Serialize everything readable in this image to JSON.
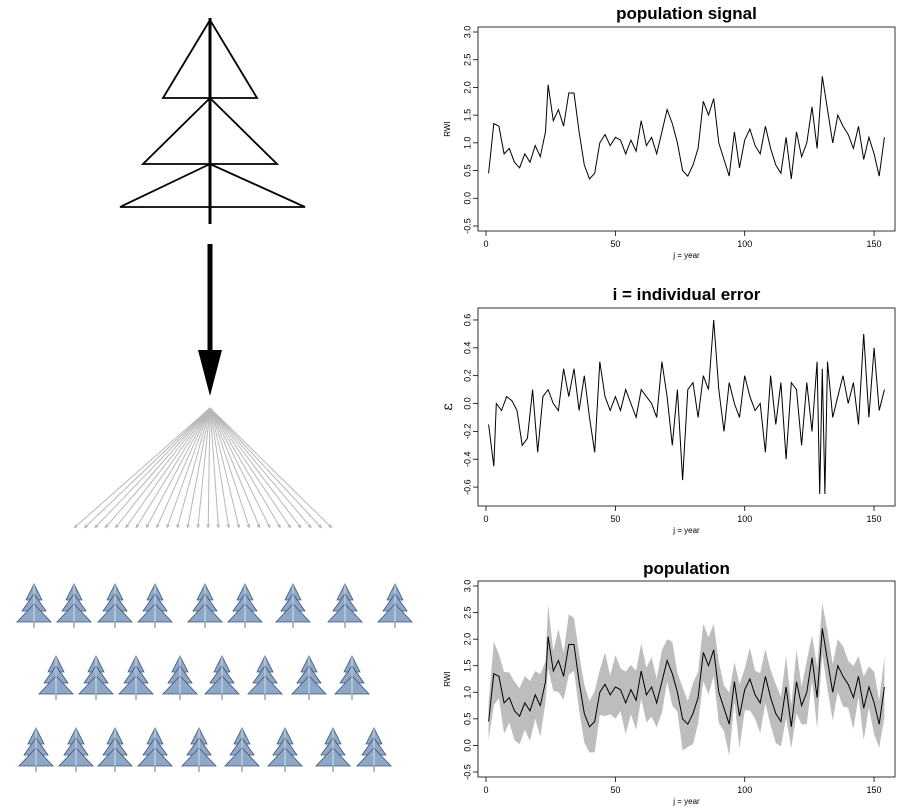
{
  "icons": {
    "main": "tree-outline-icon",
    "arrow": "down-arrow-icon",
    "fan": "fan-out-arrows-icon",
    "small": "small-tree-icon"
  },
  "colors": {
    "line": "#000000",
    "band": "#bdbdbd",
    "fan": "#b8b8b8",
    "tree_fill": "#8fa7c7",
    "tree_dark": "#3e5578"
  },
  "forest": {
    "rows": [
      9,
      8,
      9
    ]
  },
  "charts": [
    {
      "id": "signal",
      "title": "population signal",
      "ylabel": "RWI",
      "xlabel": "j = year",
      "ylim": [
        -0.5,
        3.0
      ],
      "xlim": [
        0,
        155
      ],
      "yticks": [
        "-0.5",
        "0.0",
        "0.5",
        "1.0",
        "1.5",
        "2.0",
        "2.5",
        "3.0"
      ],
      "xticks": [
        "0",
        "50",
        "100",
        "150"
      ]
    },
    {
      "id": "error",
      "title": "i = individual error",
      "ylabel": "ε",
      "xlabel": "j = year",
      "ylim": [
        -0.7,
        0.65
      ],
      "xlim": [
        0,
        155
      ],
      "yticks": [
        "-0.6",
        "-0.4",
        "-0.2",
        "0.0",
        "0.2",
        "0.4",
        "0.6"
      ],
      "xticks": [
        "0",
        "50",
        "100",
        "150"
      ]
    },
    {
      "id": "population",
      "title": "population",
      "ylabel": "RWI",
      "xlabel": "j = year",
      "ylim": [
        -0.5,
        3.0
      ],
      "xlim": [
        0,
        155
      ],
      "yticks": [
        "-0.5",
        "0.0",
        "0.5",
        "1.0",
        "1.5",
        "2.0",
        "2.5",
        "3.0"
      ],
      "xticks": [
        "0",
        "50",
        "100",
        "150"
      ]
    }
  ],
  "chart_data": [
    {
      "type": "line",
      "title": "population signal",
      "xlabel": "j = year",
      "ylabel": "RWI",
      "ylim": [
        -0.5,
        3.0
      ],
      "x": [
        1,
        3,
        5,
        7,
        9,
        11,
        13,
        15,
        17,
        19,
        21,
        23,
        24,
        26,
        28,
        30,
        32,
        34,
        36,
        38,
        40,
        42,
        44,
        46,
        48,
        50,
        52,
        54,
        56,
        58,
        60,
        62,
        64,
        66,
        68,
        70,
        72,
        74,
        76,
        78,
        80,
        82,
        84,
        86,
        88,
        90,
        92,
        94,
        96,
        98,
        100,
        102,
        104,
        106,
        108,
        110,
        112,
        114,
        116,
        118,
        120,
        122,
        124,
        126,
        128,
        130,
        132,
        134,
        136,
        138,
        140,
        142,
        144,
        146,
        148,
        150,
        152,
        154
      ],
      "y": [
        0.45,
        1.35,
        1.3,
        0.8,
        0.9,
        0.65,
        0.55,
        0.8,
        0.65,
        0.95,
        0.75,
        1.2,
        2.05,
        1.4,
        1.6,
        1.3,
        1.9,
        1.9,
        1.2,
        0.6,
        0.35,
        0.45,
        1.0,
        1.15,
        0.95,
        1.1,
        1.05,
        0.8,
        1.05,
        0.85,
        1.4,
        0.95,
        1.1,
        0.8,
        1.2,
        1.6,
        1.35,
        1.0,
        0.5,
        0.4,
        0.6,
        0.9,
        1.75,
        1.5,
        1.8,
        1.0,
        0.7,
        0.4,
        1.2,
        0.55,
        1.05,
        1.25,
        0.95,
        0.8,
        1.3,
        0.9,
        0.6,
        0.45,
        1.1,
        0.35,
        1.2,
        0.75,
        1.0,
        1.65,
        0.9,
        2.2,
        1.6,
        1.0,
        1.5,
        1.3,
        1.15,
        0.9,
        1.3,
        0.7,
        1.1,
        0.8,
        0.4,
        1.1
      ]
    },
    {
      "type": "line",
      "title": "i = individual error",
      "xlabel": "j = year",
      "ylabel": "ε",
      "ylim": [
        -0.7,
        0.65
      ],
      "x": [
        1,
        3,
        4,
        6,
        8,
        10,
        12,
        14,
        16,
        18,
        20,
        22,
        24,
        26,
        28,
        30,
        32,
        34,
        36,
        38,
        40,
        42,
        44,
        46,
        48,
        50,
        52,
        54,
        56,
        58,
        60,
        62,
        64,
        66,
        68,
        70,
        72,
        74,
        76,
        78,
        80,
        82,
        84,
        86,
        88,
        90,
        92,
        94,
        96,
        98,
        100,
        102,
        104,
        106,
        108,
        110,
        112,
        114,
        116,
        118,
        120,
        122,
        124,
        126,
        128,
        129,
        130,
        131,
        132,
        134,
        136,
        138,
        140,
        142,
        144,
        146,
        148,
        150,
        152,
        154
      ],
      "y": [
        -0.15,
        -0.45,
        0.0,
        -0.05,
        0.05,
        0.02,
        -0.05,
        -0.3,
        -0.25,
        0.1,
        -0.35,
        0.05,
        0.1,
        0.0,
        -0.05,
        0.25,
        0.05,
        0.25,
        -0.05,
        0.2,
        -0.1,
        -0.35,
        0.3,
        0.05,
        -0.05,
        0.05,
        -0.05,
        0.1,
        0.0,
        -0.1,
        0.1,
        0.05,
        0.0,
        -0.1,
        0.3,
        0.05,
        -0.3,
        0.1,
        -0.55,
        0.1,
        0.15,
        -0.1,
        0.2,
        0.1,
        0.6,
        0.1,
        -0.2,
        0.15,
        0.0,
        -0.1,
        0.2,
        0.05,
        -0.05,
        0.0,
        -0.35,
        0.2,
        -0.15,
        0.15,
        -0.4,
        0.15,
        0.1,
        -0.3,
        0.15,
        -0.2,
        0.3,
        -0.65,
        0.25,
        -0.65,
        0.3,
        -0.1,
        0.05,
        0.2,
        0.0,
        0.15,
        -0.15,
        0.5,
        -0.1,
        0.4,
        -0.05,
        0.1
      ]
    },
    {
      "type": "area",
      "title": "population",
      "xlabel": "j = year",
      "ylabel": "RWI",
      "ylim": [
        -0.5,
        3.0
      ],
      "x": [
        1,
        3,
        5,
        7,
        9,
        11,
        13,
        15,
        17,
        19,
        21,
        23,
        24,
        26,
        28,
        30,
        32,
        34,
        36,
        38,
        40,
        42,
        44,
        46,
        48,
        50,
        52,
        54,
        56,
        58,
        60,
        62,
        64,
        66,
        68,
        70,
        72,
        74,
        76,
        78,
        80,
        82,
        84,
        86,
        88,
        90,
        92,
        94,
        96,
        98,
        100,
        102,
        104,
        106,
        108,
        110,
        112,
        114,
        116,
        118,
        120,
        122,
        124,
        126,
        128,
        130,
        132,
        134,
        136,
        138,
        140,
        142,
        144,
        146,
        148,
        150,
        152,
        154
      ],
      "series": [
        {
          "values": [
            0.45,
            1.35,
            1.3,
            0.8,
            0.9,
            0.65,
            0.55,
            0.8,
            0.65,
            0.95,
            0.75,
            1.2,
            2.05,
            1.4,
            1.6,
            1.3,
            1.9,
            1.9,
            1.2,
            0.6,
            0.35,
            0.45,
            1.0,
            1.15,
            0.95,
            1.1,
            1.05,
            0.8,
            1.05,
            0.85,
            1.4,
            0.95,
            1.1,
            0.8,
            1.2,
            1.6,
            1.35,
            1.0,
            0.5,
            0.4,
            0.6,
            0.9,
            1.75,
            1.5,
            1.8,
            1.0,
            0.7,
            0.4,
            1.2,
            0.55,
            1.05,
            1.25,
            0.95,
            0.8,
            1.3,
            0.9,
            0.6,
            0.45,
            1.1,
            0.35,
            1.2,
            0.75,
            1.0,
            1.65,
            0.9,
            2.2,
            1.6,
            1.0,
            1.5,
            1.3,
            1.15,
            0.9,
            1.3,
            0.7,
            1.1,
            0.8,
            0.4,
            1.1
          ]
        }
      ],
      "band_width": 0.6
    }
  ]
}
